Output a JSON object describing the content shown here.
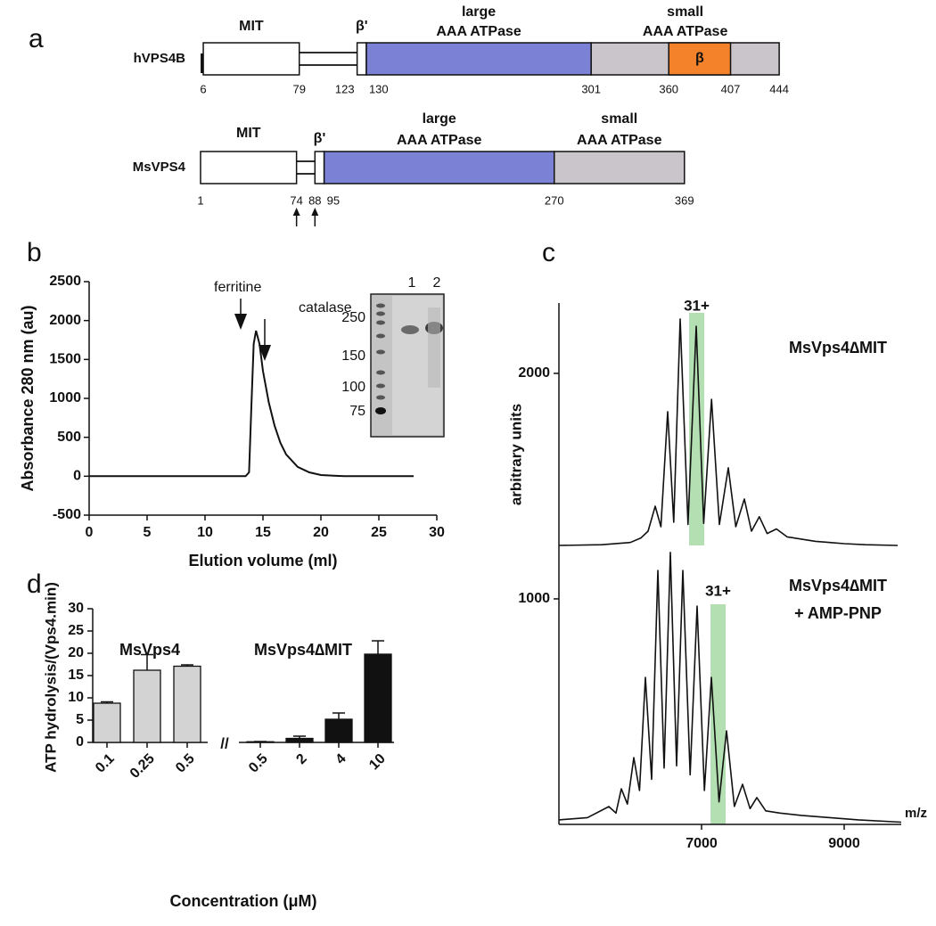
{
  "panel_a": {
    "label": "a",
    "colors": {
      "large": "#7b82d6",
      "small": "#c9c5cb",
      "beta": "#f4822a"
    },
    "proteins": [
      {
        "name": "hVPS4B",
        "positions": [
          6,
          79,
          123,
          130,
          301,
          360,
          407,
          444
        ],
        "labels": {
          "mit": "MIT",
          "beta_prime": "β'",
          "large": [
            "large",
            "AAA ATPase"
          ],
          "small": [
            "small",
            "AAA ATPase"
          ],
          "beta": "β"
        }
      },
      {
        "name": "MsVPS4",
        "positions": [
          1,
          74,
          88,
          95,
          270,
          369
        ],
        "labels": {
          "mit": "MIT",
          "beta_prime": "β'",
          "large": [
            "large",
            "AAA ATPase"
          ],
          "small": [
            "small",
            "AAA ATPase"
          ]
        }
      }
    ]
  },
  "chart_data": [
    {
      "type": "line",
      "label": "b",
      "xlabel": "Elution volume (ml)",
      "ylabel": "Absorbance 280 nm (au)",
      "x": [
        0,
        13.5,
        13.8,
        14.0,
        14.2,
        14.4,
        14.7,
        15.0,
        15.5,
        16,
        16.5,
        17,
        18,
        19,
        20,
        22,
        28
      ],
      "values": [
        0,
        0,
        50,
        900,
        1700,
        1870,
        1700,
        1350,
        950,
        650,
        430,
        280,
        120,
        50,
        15,
        0,
        0
      ],
      "color": "#111111",
      "xlim": [
        0,
        30
      ],
      "ylim": [
        -500,
        2500
      ],
      "xticks": [
        0,
        5,
        10,
        15,
        20,
        25,
        30
      ],
      "yticks": [
        -500,
        0,
        500,
        1000,
        1500,
        2000,
        2500
      ],
      "annotations": [
        "ferritine",
        "catalase"
      ],
      "inset": {
        "lanes": [
          "1",
          "2"
        ],
        "markers": [
          "250",
          "150",
          "100",
          "75"
        ]
      }
    },
    {
      "type": "line",
      "label": "c",
      "xlabel": "m/z",
      "ylabel": "arbitrary units",
      "xlim": [
        5000,
        9800
      ],
      "ylim": [
        0,
        2300
      ],
      "xticks": [
        7000,
        9000
      ],
      "yticks": [
        1000,
        2000
      ],
      "highlight_color": "#a6d9a6",
      "series": [
        {
          "name": [
            "MsVps4∆MIT"
          ],
          "color": "#111111",
          "highlight": [
            6825,
            7038
          ],
          "highlight_label": "31+",
          "x": [
            5000,
            5600,
            6000,
            6150,
            6250,
            6350,
            6430,
            6525,
            6610,
            6700,
            6810,
            6925,
            7030,
            7140,
            7250,
            7375,
            7480,
            7600,
            7700,
            7810,
            7920,
            8050,
            8200,
            8400,
            8600,
            8800,
            9000,
            9300,
            9750
          ],
          "values": [
            1237,
            1240,
            1250,
            1270,
            1300,
            1411,
            1320,
            1830,
            1340,
            2241,
            1330,
            2209,
            1335,
            1885,
            1330,
            1581,
            1320,
            1443,
            1300,
            1364,
            1290,
            1310,
            1275,
            1265,
            1255,
            1250,
            1245,
            1240,
            1237
          ]
        },
        {
          "name": [
            "MsVps4∆MIT",
            "+ AMP-PNP"
          ],
          "color": "#111111",
          "highlight": [
            7125,
            7338
          ],
          "highlight_label": "31+",
          "x": [
            5000,
            5400,
            5700,
            5800,
            5875,
            5960,
            6050,
            6130,
            6212,
            6300,
            6387,
            6475,
            6562,
            6650,
            6737,
            6840,
            6937,
            7040,
            7137,
            7245,
            7350,
            7460,
            7575,
            7680,
            7775,
            7900,
            8100,
            8400,
            8800,
            9200,
            9800
          ],
          "values": [
            20,
            30,
            79,
            50,
            158,
            90,
            296,
            150,
            652,
            200,
            1126,
            250,
            1206,
            260,
            1126,
            220,
            968,
            150,
            652,
            100,
            415,
            80,
            178,
            70,
            119,
            60,
            50,
            40,
            30,
            20,
            10
          ]
        }
      ]
    },
    {
      "type": "bar",
      "label": "d",
      "xlabel": "Concentration (μM)",
      "ylabel": "ATP hydrolysis/(Vps4.min)",
      "ylim": [
        0,
        30
      ],
      "yticks": [
        0,
        5,
        10,
        15,
        20,
        25,
        30
      ],
      "axis_break": "//",
      "groups": [
        {
          "name": "MsVps4",
          "color": "#d3d3d3",
          "categories": [
            "0.1",
            "0.25",
            "0.5"
          ],
          "values": [
            8.8,
            16.2,
            17.1
          ],
          "errors": [
            0.3,
            3.5,
            0.3
          ]
        },
        {
          "name": "MsVps4∆MIT",
          "color": "#111111",
          "categories": [
            "0.5",
            "2",
            "4",
            "10"
          ],
          "values": [
            0.15,
            0.9,
            5.2,
            19.8
          ],
          "errors": [
            0.05,
            0.5,
            1.4,
            3.0
          ]
        }
      ]
    }
  ]
}
